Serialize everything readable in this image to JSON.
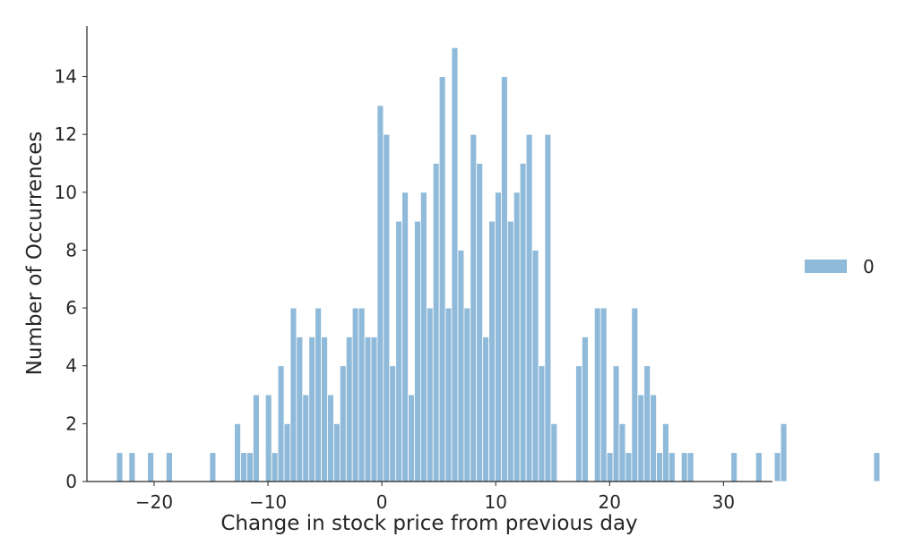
{
  "chart_data": {
    "type": "bar",
    "title": "",
    "xlabel": "Change in stock price from previous day",
    "ylabel": "Number of Occurrences",
    "xlim": [
      -25.9,
      34.3
    ],
    "ylim": [
      0,
      15.75
    ],
    "xticks": [
      -20,
      -10,
      0,
      10,
      20,
      30
    ],
    "yticks": [
      0,
      2,
      4,
      6,
      8,
      10,
      12,
      14
    ],
    "xtick_labels": [
      "−20",
      "−10",
      "0",
      "10",
      "20",
      "30"
    ],
    "ytick_labels": [
      "0",
      "2",
      "4",
      "6",
      "8",
      "10",
      "12",
      "14"
    ],
    "grid": false,
    "legend": {
      "placement": "right",
      "entries": [
        "0"
      ]
    },
    "bin_start": -23.3,
    "bin_width": 0.545,
    "series": [
      {
        "color": "#8fbad9",
        "values": [
          1,
          0,
          1,
          0,
          0,
          1,
          0,
          0,
          1,
          0,
          0,
          0,
          0,
          0,
          0,
          1,
          0,
          0,
          0,
          2,
          1,
          1,
          3,
          0,
          3,
          1,
          4,
          2,
          6,
          5,
          3,
          5,
          6,
          5,
          3,
          2,
          4,
          5,
          6,
          6,
          5,
          5,
          13,
          12,
          4,
          9,
          10,
          3,
          9,
          10,
          6,
          11,
          14,
          6,
          15,
          8,
          6,
          12,
          11,
          5,
          9,
          10,
          14,
          9,
          10,
          11,
          12,
          8,
          4,
          12,
          2,
          0,
          0,
          0,
          4,
          5,
          0,
          6,
          6,
          1,
          4,
          2,
          1,
          6,
          3,
          4,
          3,
          1,
          2,
          1,
          0,
          1,
          1,
          0,
          0,
          0,
          0,
          0,
          0,
          1,
          0,
          0,
          0,
          1,
          0,
          0,
          1,
          2,
          0,
          0,
          0,
          0,
          0,
          0,
          0,
          0,
          0,
          0,
          0,
          0,
          0,
          0,
          1
        ]
      }
    ]
  }
}
